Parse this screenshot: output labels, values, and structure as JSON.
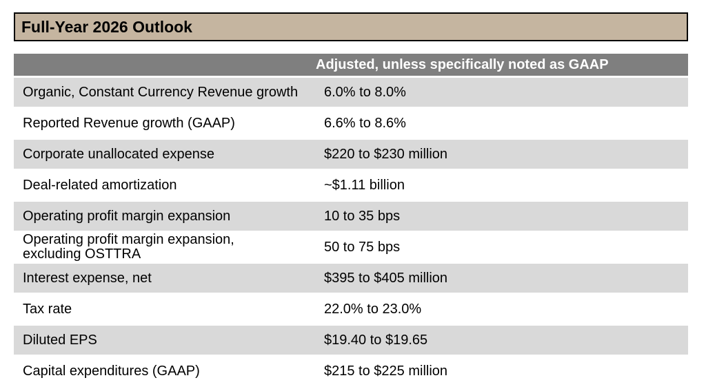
{
  "title_bar": {
    "text": "Full-Year 2026 Outlook",
    "background_color": "#c5b5a0",
    "border_color": "#000000",
    "text_color": "#000000"
  },
  "table": {
    "header": {
      "col1": "",
      "col2": "Adjusted, unless specifically noted as GAAP",
      "background_color": "#7f7f7f",
      "text_color": "#ffffff"
    },
    "row_colors": {
      "shaded": "#d9d9d9",
      "plain": "#ffffff",
      "text": "#000000"
    },
    "rows": [
      {
        "label": "Organic, Constant Currency Revenue growth",
        "value": "6.0% to 8.0%"
      },
      {
        "label": "Reported Revenue growth (GAAP)",
        "value": "6.6% to 8.6%"
      },
      {
        "label": "Corporate unallocated expense",
        "value": "$220 to $230 million"
      },
      {
        "label": "Deal-related amortization",
        "value": "~$1.11 billion"
      },
      {
        "label": "Operating profit margin expansion",
        "value": "10 to 35 bps"
      },
      {
        "label": "Operating profit margin expansion,\nexcluding OSTTRA",
        "value": "50 to 75 bps"
      },
      {
        "label": "Interest expense, net",
        "value": "$395 to $405 million"
      },
      {
        "label": "Tax rate",
        "value": "22.0% to 23.0%"
      },
      {
        "label": "Diluted EPS",
        "value": "$19.40 to $19.65"
      },
      {
        "label": "Capital expenditures (GAAP)",
        "value": "$215 to $225 million"
      }
    ]
  }
}
